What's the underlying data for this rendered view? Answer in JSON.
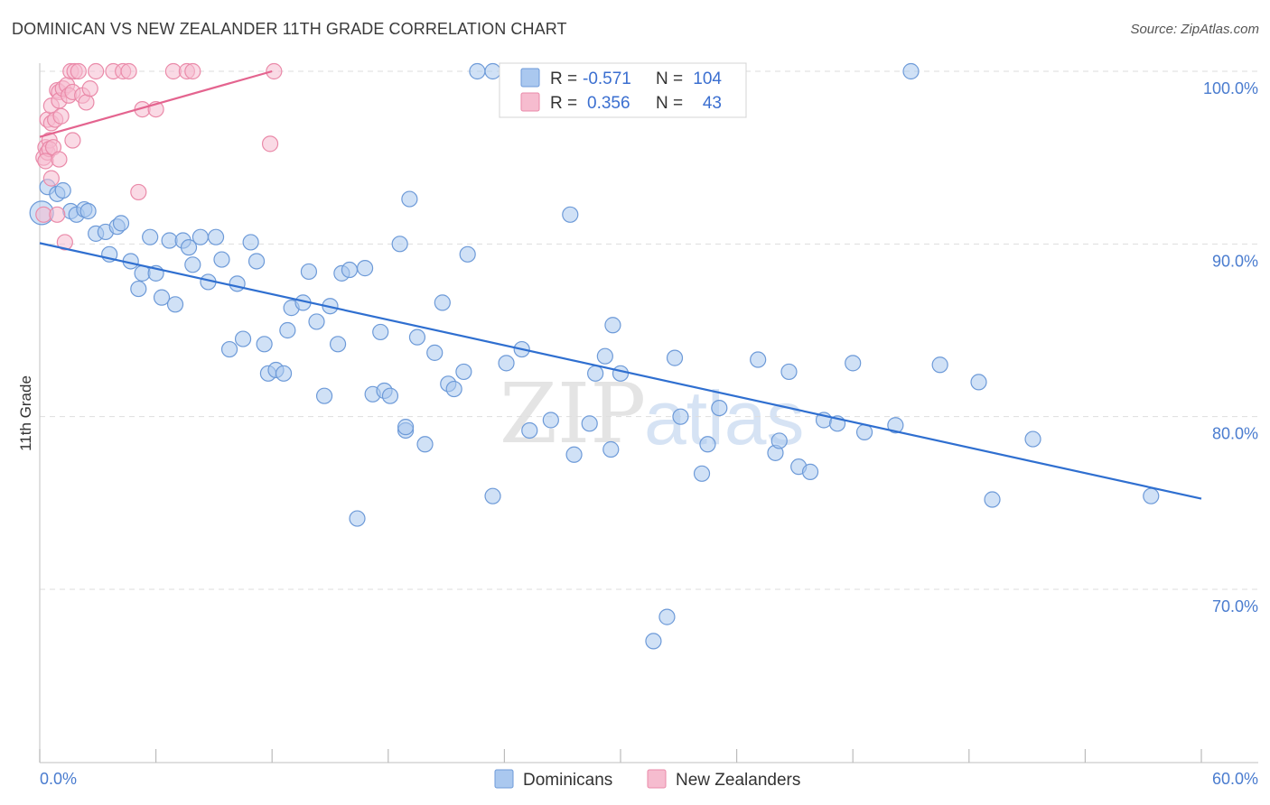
{
  "title": "DOMINICAN VS NEW ZEALANDER 11TH GRADE CORRELATION CHART",
  "source": "Source: ZipAtlas.com",
  "watermark": {
    "part1": "ZIP",
    "part2": "atlas"
  },
  "chart_data": {
    "type": "scatter",
    "title": "DOMINICAN VS NEW ZEALANDER 11TH GRADE CORRELATION CHART",
    "xlabel": "",
    "ylabel": "11th Grade",
    "xlim": [
      0,
      60
    ],
    "ylim": [
      60,
      100.9
    ],
    "x_tick_labels": {
      "left": "0.0%",
      "right": "60.0%"
    },
    "y_ticks": [
      {
        "value": 100,
        "label": "100.0%"
      },
      {
        "value": 90,
        "label": "90.0%"
      },
      {
        "value": 80,
        "label": "80.0%"
      },
      {
        "value": 70,
        "label": "70.0%"
      }
    ],
    "legend": [
      {
        "name": "Dominicans",
        "r_label": "R =",
        "r": "-0.571",
        "n_label": "N =",
        "n": "104"
      },
      {
        "name": "New Zealanders",
        "r_label": "R =",
        "r": "0.356",
        "n_label": "N =",
        "n": "43"
      }
    ],
    "colors": {
      "blue_fill": "#aac8ef",
      "blue_stroke": "#6d9ad8",
      "blue_line": "#2f6fd0",
      "pink_fill": "#f6bccf",
      "pink_stroke": "#ea8aa9",
      "pink_line": "#e4648f",
      "grid": "#dddddd",
      "axis": "#cccccc"
    },
    "series": [
      {
        "name": "Dominicans",
        "trend": {
          "x": [
            0,
            60
          ],
          "y": [
            90.05,
            75.25
          ]
        },
        "points": [
          [
            0.1,
            91.8
          ],
          [
            0.4,
            93.3
          ],
          [
            0.9,
            92.9
          ],
          [
            1.2,
            93.1
          ],
          [
            1.6,
            91.9
          ],
          [
            1.9,
            91.7
          ],
          [
            2.3,
            92.0
          ],
          [
            2.5,
            91.9
          ],
          [
            2.9,
            90.6
          ],
          [
            3.4,
            90.7
          ],
          [
            3.6,
            89.4
          ],
          [
            4.0,
            91.0
          ],
          [
            4.2,
            91.2
          ],
          [
            4.7,
            89.0
          ],
          [
            5.1,
            87.4
          ],
          [
            5.3,
            88.3
          ],
          [
            5.7,
            90.4
          ],
          [
            6.0,
            88.3
          ],
          [
            6.3,
            86.9
          ],
          [
            6.7,
            90.2
          ],
          [
            7.0,
            86.5
          ],
          [
            7.4,
            90.2
          ],
          [
            7.7,
            89.8
          ],
          [
            7.9,
            88.8
          ],
          [
            8.3,
            90.4
          ],
          [
            8.7,
            87.8
          ],
          [
            9.1,
            90.4
          ],
          [
            9.4,
            89.1
          ],
          [
            9.8,
            83.9
          ],
          [
            10.2,
            87.7
          ],
          [
            10.5,
            84.5
          ],
          [
            10.9,
            90.1
          ],
          [
            11.2,
            89.0
          ],
          [
            11.6,
            84.2
          ],
          [
            11.8,
            82.5
          ],
          [
            12.2,
            82.7
          ],
          [
            12.6,
            82.5
          ],
          [
            12.8,
            85.0
          ],
          [
            13.0,
            86.3
          ],
          [
            13.6,
            86.6
          ],
          [
            13.9,
            88.4
          ],
          [
            14.3,
            85.5
          ],
          [
            14.7,
            81.2
          ],
          [
            15.0,
            86.4
          ],
          [
            15.4,
            84.2
          ],
          [
            15.6,
            88.3
          ],
          [
            16.0,
            88.5
          ],
          [
            16.4,
            74.1
          ],
          [
            16.8,
            88.6
          ],
          [
            17.2,
            81.3
          ],
          [
            17.6,
            84.9
          ],
          [
            17.8,
            81.5
          ],
          [
            18.1,
            81.2
          ],
          [
            18.6,
            90.0
          ],
          [
            18.9,
            79.2
          ],
          [
            19.1,
            92.6
          ],
          [
            19.5,
            84.6
          ],
          [
            19.9,
            78.4
          ],
          [
            20.4,
            83.7
          ],
          [
            20.8,
            86.6
          ],
          [
            21.1,
            81.9
          ],
          [
            21.4,
            81.6
          ],
          [
            21.9,
            82.6
          ],
          [
            22.1,
            89.4
          ],
          [
            22.6,
            100.0
          ],
          [
            23.4,
            100.0
          ],
          [
            23.4,
            75.4
          ],
          [
            24.1,
            83.1
          ],
          [
            24.9,
            83.9
          ],
          [
            25.3,
            79.2
          ],
          [
            26.4,
            79.8
          ],
          [
            27.4,
            91.7
          ],
          [
            27.6,
            77.8
          ],
          [
            28.4,
            79.6
          ],
          [
            28.7,
            82.5
          ],
          [
            29.2,
            83.5
          ],
          [
            29.5,
            78.1
          ],
          [
            29.6,
            85.3
          ],
          [
            30.0,
            82.5
          ],
          [
            31.7,
            67.0
          ],
          [
            32.4,
            68.4
          ],
          [
            32.8,
            83.4
          ],
          [
            33.1,
            80.0
          ],
          [
            34.2,
            76.7
          ],
          [
            34.5,
            78.4
          ],
          [
            35.1,
            80.5
          ],
          [
            37.1,
            83.3
          ],
          [
            38.0,
            77.9
          ],
          [
            38.2,
            78.6
          ],
          [
            38.7,
            82.6
          ],
          [
            39.2,
            77.1
          ],
          [
            39.8,
            76.8
          ],
          [
            40.5,
            79.8
          ],
          [
            41.2,
            79.6
          ],
          [
            42.0,
            83.1
          ],
          [
            42.6,
            79.1
          ],
          [
            44.2,
            79.5
          ],
          [
            45.0,
            100.0
          ],
          [
            46.5,
            83.0
          ],
          [
            48.5,
            82.0
          ],
          [
            49.2,
            75.2
          ],
          [
            51.3,
            78.7
          ],
          [
            57.4,
            75.4
          ],
          [
            18.9,
            79.4
          ]
        ]
      },
      {
        "name": "New Zealanders",
        "trend": {
          "x": [
            0,
            12.0
          ],
          "y": [
            96.2,
            100.0
          ]
        },
        "points": [
          [
            0.2,
            91.7
          ],
          [
            0.2,
            95.0
          ],
          [
            0.3,
            95.6
          ],
          [
            0.4,
            95.3
          ],
          [
            0.4,
            97.2
          ],
          [
            0.5,
            96.0
          ],
          [
            0.5,
            95.5
          ],
          [
            0.6,
            97.0
          ],
          [
            0.6,
            98.0
          ],
          [
            0.7,
            95.6
          ],
          [
            0.8,
            97.2
          ],
          [
            0.9,
            98.9
          ],
          [
            1.0,
            98.8
          ],
          [
            1.0,
            98.3
          ],
          [
            1.1,
            97.4
          ],
          [
            1.2,
            99.0
          ],
          [
            1.3,
            90.1
          ],
          [
            1.4,
            99.2
          ],
          [
            1.5,
            98.6
          ],
          [
            1.6,
            100.0
          ],
          [
            1.7,
            98.8
          ],
          [
            1.8,
            100.0
          ],
          [
            2.0,
            100.0
          ],
          [
            2.2,
            98.6
          ],
          [
            2.4,
            98.2
          ],
          [
            2.6,
            99.0
          ],
          [
            2.9,
            100.0
          ],
          [
            3.8,
            100.0
          ],
          [
            4.3,
            100.0
          ],
          [
            4.6,
            100.0
          ],
          [
            5.1,
            93.0
          ],
          [
            5.3,
            97.8
          ],
          [
            6.0,
            97.8
          ],
          [
            6.9,
            100.0
          ],
          [
            7.6,
            100.0
          ],
          [
            7.9,
            100.0
          ],
          [
            11.9,
            95.8
          ],
          [
            12.1,
            100.0
          ],
          [
            0.3,
            94.8
          ],
          [
            0.6,
            93.8
          ],
          [
            1.0,
            94.9
          ],
          [
            1.7,
            96.0
          ],
          [
            0.9,
            91.7
          ]
        ]
      }
    ]
  }
}
